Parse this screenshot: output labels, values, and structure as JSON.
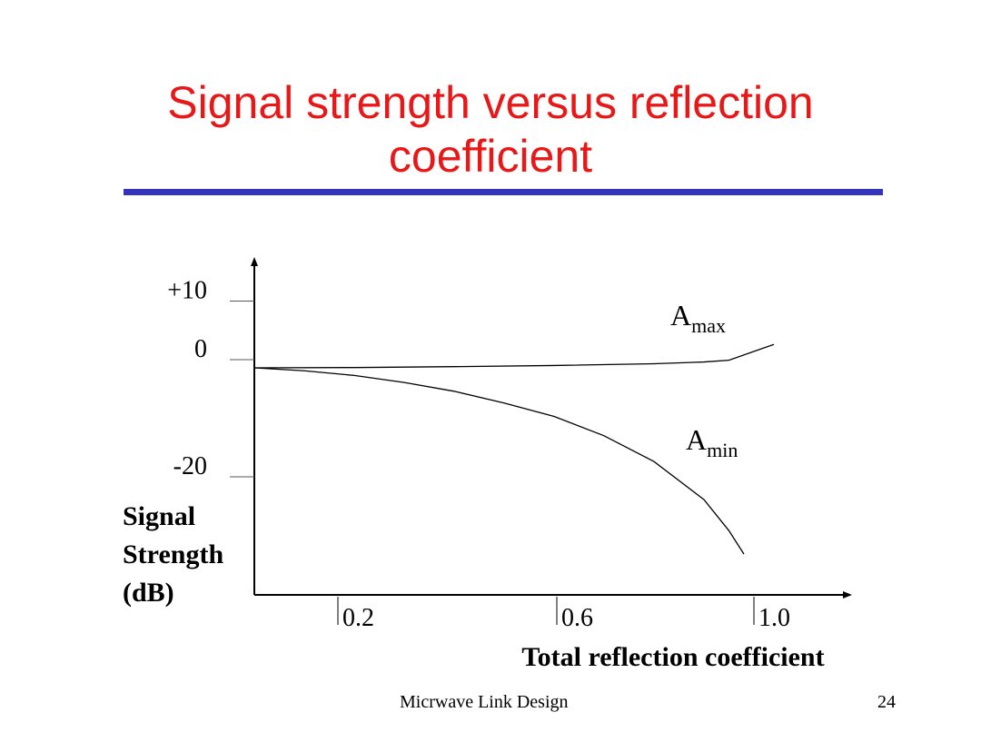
{
  "slide": {
    "title": "Signal strength versus reflection coefficient",
    "footer": "Micrwave Link Design",
    "page_number": "24",
    "title_color": "#e81818",
    "rule_color": "#3333bb"
  },
  "chart_data": {
    "type": "line",
    "title": "",
    "xlabel": "Total reflection coefficient",
    "ylabel_lines": [
      "Signal",
      "Strength",
      "(dB)"
    ],
    "x_ticks": [
      {
        "value": 0.2,
        "label": "0.2"
      },
      {
        "value": 0.6,
        "label": "0.6"
      },
      {
        "value": 1.0,
        "label": "1.0"
      }
    ],
    "y_ticks": [
      {
        "value": 10,
        "label": "+10"
      },
      {
        "value": 0,
        "label": "0"
      },
      {
        "value": -20,
        "label": "-20"
      }
    ],
    "series": [
      {
        "name": "A",
        "subscript": "max",
        "x": [
          0.0,
          0.2,
          0.4,
          0.6,
          0.8,
          0.9,
          0.95,
          1.04
        ],
        "y": [
          0.0,
          0.05,
          0.2,
          0.4,
          0.7,
          1.0,
          1.3,
          4.0
        ]
      },
      {
        "name": "A",
        "subscript": "min",
        "x": [
          0.0,
          0.1,
          0.2,
          0.3,
          0.4,
          0.5,
          0.6,
          0.7,
          0.8,
          0.9,
          0.95,
          0.98
        ],
        "y": [
          0.0,
          -0.5,
          -1.3,
          -2.5,
          -4.0,
          -6.0,
          -8.3,
          -11.6,
          -16.0,
          -22.5,
          -27.8,
          -31.8
        ]
      }
    ],
    "grid": false,
    "legend": "inline labels"
  }
}
